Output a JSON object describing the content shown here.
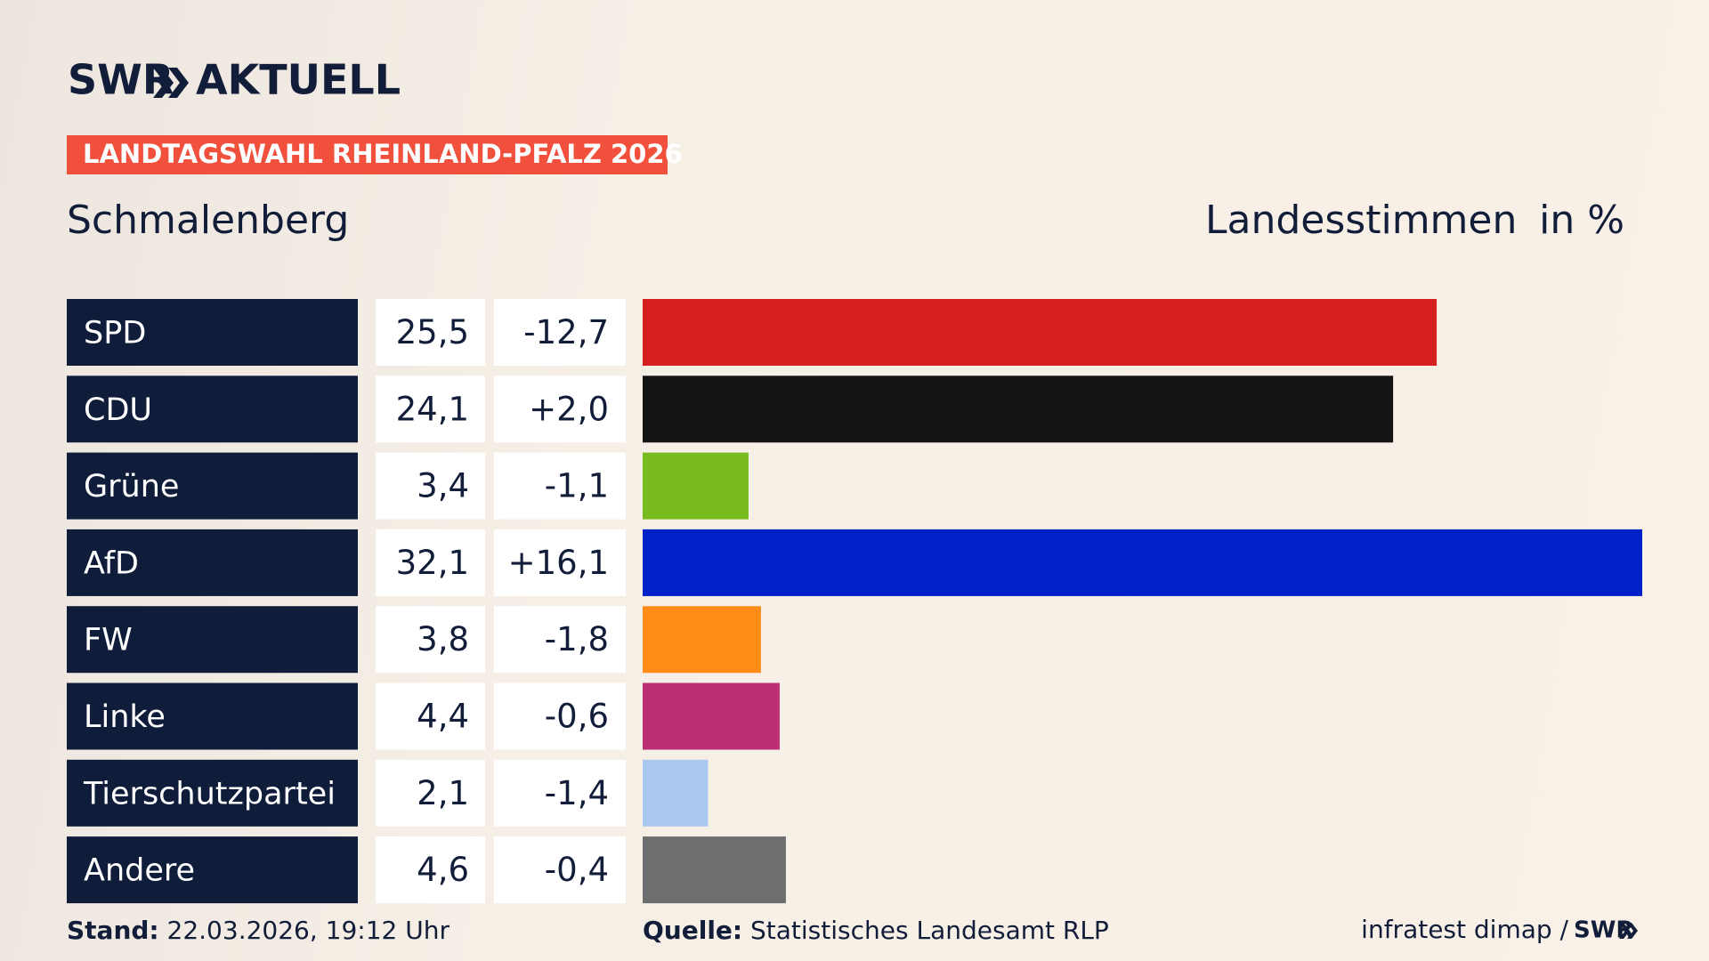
{
  "brand": {
    "name": "SWR",
    "product": "AKTUELL"
  },
  "tag": "LANDTAGSWAHL RHEINLAND-PFALZ 2026",
  "chart_data": {
    "type": "bar",
    "orientation": "horizontal",
    "title": "Schmalenberg",
    "measure_label": "Landesstimmen",
    "unit_label": "in %",
    "categories": [
      "SPD",
      "CDU",
      "Grüne",
      "AfD",
      "FW",
      "Linke",
      "Tierschutzpartei",
      "Andere"
    ],
    "values": [
      25.5,
      24.1,
      3.4,
      32.1,
      3.8,
      4.4,
      2.1,
      4.6
    ],
    "value_labels": [
      "25,5",
      "24,1",
      "3,4",
      "32,1",
      "3,8",
      "4,4",
      "2,1",
      "4,6"
    ],
    "changes": [
      {
        "value": -12.7,
        "label": "-12,7"
      },
      {
        "value": 2.0,
        "label": "+2,0"
      },
      {
        "value": -1.1,
        "label": "-1,1"
      },
      {
        "value": 16.1,
        "label": "+16,1"
      },
      {
        "value": -1.8,
        "label": "-1,8"
      },
      {
        "value": -0.6,
        "label": "-0,6"
      },
      {
        "value": -1.4,
        "label": "-1,4"
      },
      {
        "value": -0.4,
        "label": "-0,4"
      }
    ],
    "colors": [
      "#d61f1f",
      "#141414",
      "#78bb1e",
      "#0021c8",
      "#ff8c17",
      "#bb2d74",
      "#a9c8ef",
      "#6d6e70"
    ]
  },
  "footer": {
    "stand_label": "Stand:",
    "stand": "22.03.2026, 19:12 Uhr",
    "source_label": "Quelle:",
    "source": "Statistisches Landesamt RLP",
    "credit": "infratest dimap /",
    "credit_brand": "SWR"
  }
}
